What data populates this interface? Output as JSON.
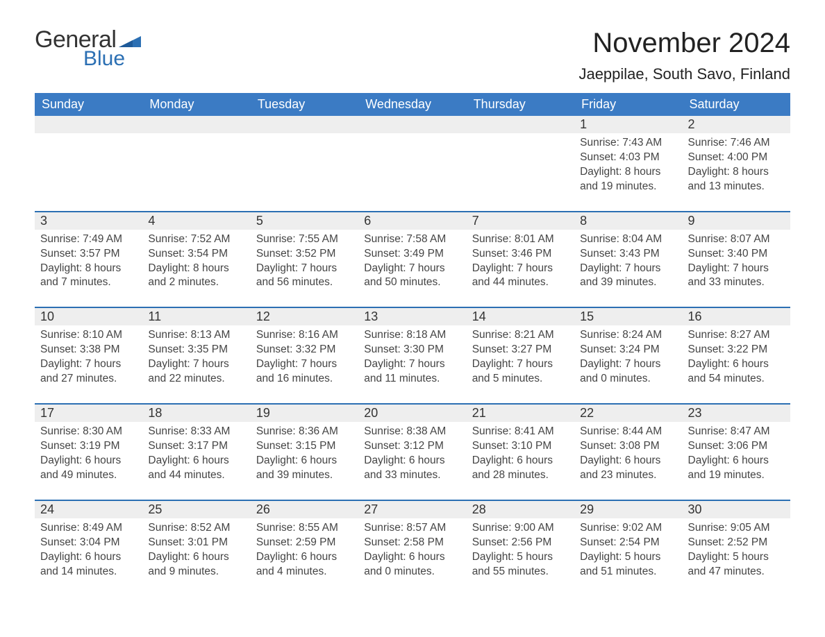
{
  "brand": {
    "word1": "General",
    "word2": "Blue",
    "flag_color": "#2b6fb3"
  },
  "header": {
    "title": "November 2024",
    "location": "Jaeppilae, South Savo, Finland"
  },
  "colors": {
    "header_bg": "#3b7bc4",
    "header_text": "#ffffff",
    "row_border": "#2b6fb3",
    "daynum_bg": "#eeeeee",
    "page_bg": "#ffffff",
    "text": "#333333"
  },
  "days_of_week": [
    "Sunday",
    "Monday",
    "Tuesday",
    "Wednesday",
    "Thursday",
    "Friday",
    "Saturday"
  ],
  "weeks": [
    [
      null,
      null,
      null,
      null,
      null,
      {
        "n": "1",
        "sunrise": "Sunrise: 7:43 AM",
        "sunset": "Sunset: 4:03 PM",
        "dl1": "Daylight: 8 hours",
        "dl2": "and 19 minutes."
      },
      {
        "n": "2",
        "sunrise": "Sunrise: 7:46 AM",
        "sunset": "Sunset: 4:00 PM",
        "dl1": "Daylight: 8 hours",
        "dl2": "and 13 minutes."
      }
    ],
    [
      {
        "n": "3",
        "sunrise": "Sunrise: 7:49 AM",
        "sunset": "Sunset: 3:57 PM",
        "dl1": "Daylight: 8 hours",
        "dl2": "and 7 minutes."
      },
      {
        "n": "4",
        "sunrise": "Sunrise: 7:52 AM",
        "sunset": "Sunset: 3:54 PM",
        "dl1": "Daylight: 8 hours",
        "dl2": "and 2 minutes."
      },
      {
        "n": "5",
        "sunrise": "Sunrise: 7:55 AM",
        "sunset": "Sunset: 3:52 PM",
        "dl1": "Daylight: 7 hours",
        "dl2": "and 56 minutes."
      },
      {
        "n": "6",
        "sunrise": "Sunrise: 7:58 AM",
        "sunset": "Sunset: 3:49 PM",
        "dl1": "Daylight: 7 hours",
        "dl2": "and 50 minutes."
      },
      {
        "n": "7",
        "sunrise": "Sunrise: 8:01 AM",
        "sunset": "Sunset: 3:46 PM",
        "dl1": "Daylight: 7 hours",
        "dl2": "and 44 minutes."
      },
      {
        "n": "8",
        "sunrise": "Sunrise: 8:04 AM",
        "sunset": "Sunset: 3:43 PM",
        "dl1": "Daylight: 7 hours",
        "dl2": "and 39 minutes."
      },
      {
        "n": "9",
        "sunrise": "Sunrise: 8:07 AM",
        "sunset": "Sunset: 3:40 PM",
        "dl1": "Daylight: 7 hours",
        "dl2": "and 33 minutes."
      }
    ],
    [
      {
        "n": "10",
        "sunrise": "Sunrise: 8:10 AM",
        "sunset": "Sunset: 3:38 PM",
        "dl1": "Daylight: 7 hours",
        "dl2": "and 27 minutes."
      },
      {
        "n": "11",
        "sunrise": "Sunrise: 8:13 AM",
        "sunset": "Sunset: 3:35 PM",
        "dl1": "Daylight: 7 hours",
        "dl2": "and 22 minutes."
      },
      {
        "n": "12",
        "sunrise": "Sunrise: 8:16 AM",
        "sunset": "Sunset: 3:32 PM",
        "dl1": "Daylight: 7 hours",
        "dl2": "and 16 minutes."
      },
      {
        "n": "13",
        "sunrise": "Sunrise: 8:18 AM",
        "sunset": "Sunset: 3:30 PM",
        "dl1": "Daylight: 7 hours",
        "dl2": "and 11 minutes."
      },
      {
        "n": "14",
        "sunrise": "Sunrise: 8:21 AM",
        "sunset": "Sunset: 3:27 PM",
        "dl1": "Daylight: 7 hours",
        "dl2": "and 5 minutes."
      },
      {
        "n": "15",
        "sunrise": "Sunrise: 8:24 AM",
        "sunset": "Sunset: 3:24 PM",
        "dl1": "Daylight: 7 hours",
        "dl2": "and 0 minutes."
      },
      {
        "n": "16",
        "sunrise": "Sunrise: 8:27 AM",
        "sunset": "Sunset: 3:22 PM",
        "dl1": "Daylight: 6 hours",
        "dl2": "and 54 minutes."
      }
    ],
    [
      {
        "n": "17",
        "sunrise": "Sunrise: 8:30 AM",
        "sunset": "Sunset: 3:19 PM",
        "dl1": "Daylight: 6 hours",
        "dl2": "and 49 minutes."
      },
      {
        "n": "18",
        "sunrise": "Sunrise: 8:33 AM",
        "sunset": "Sunset: 3:17 PM",
        "dl1": "Daylight: 6 hours",
        "dl2": "and 44 minutes."
      },
      {
        "n": "19",
        "sunrise": "Sunrise: 8:36 AM",
        "sunset": "Sunset: 3:15 PM",
        "dl1": "Daylight: 6 hours",
        "dl2": "and 39 minutes."
      },
      {
        "n": "20",
        "sunrise": "Sunrise: 8:38 AM",
        "sunset": "Sunset: 3:12 PM",
        "dl1": "Daylight: 6 hours",
        "dl2": "and 33 minutes."
      },
      {
        "n": "21",
        "sunrise": "Sunrise: 8:41 AM",
        "sunset": "Sunset: 3:10 PM",
        "dl1": "Daylight: 6 hours",
        "dl2": "and 28 minutes."
      },
      {
        "n": "22",
        "sunrise": "Sunrise: 8:44 AM",
        "sunset": "Sunset: 3:08 PM",
        "dl1": "Daylight: 6 hours",
        "dl2": "and 23 minutes."
      },
      {
        "n": "23",
        "sunrise": "Sunrise: 8:47 AM",
        "sunset": "Sunset: 3:06 PM",
        "dl1": "Daylight: 6 hours",
        "dl2": "and 19 minutes."
      }
    ],
    [
      {
        "n": "24",
        "sunrise": "Sunrise: 8:49 AM",
        "sunset": "Sunset: 3:04 PM",
        "dl1": "Daylight: 6 hours",
        "dl2": "and 14 minutes."
      },
      {
        "n": "25",
        "sunrise": "Sunrise: 8:52 AM",
        "sunset": "Sunset: 3:01 PM",
        "dl1": "Daylight: 6 hours",
        "dl2": "and 9 minutes."
      },
      {
        "n": "26",
        "sunrise": "Sunrise: 8:55 AM",
        "sunset": "Sunset: 2:59 PM",
        "dl1": "Daylight: 6 hours",
        "dl2": "and 4 minutes."
      },
      {
        "n": "27",
        "sunrise": "Sunrise: 8:57 AM",
        "sunset": "Sunset: 2:58 PM",
        "dl1": "Daylight: 6 hours",
        "dl2": "and 0 minutes."
      },
      {
        "n": "28",
        "sunrise": "Sunrise: 9:00 AM",
        "sunset": "Sunset: 2:56 PM",
        "dl1": "Daylight: 5 hours",
        "dl2": "and 55 minutes."
      },
      {
        "n": "29",
        "sunrise": "Sunrise: 9:02 AM",
        "sunset": "Sunset: 2:54 PM",
        "dl1": "Daylight: 5 hours",
        "dl2": "and 51 minutes."
      },
      {
        "n": "30",
        "sunrise": "Sunrise: 9:05 AM",
        "sunset": "Sunset: 2:52 PM",
        "dl1": "Daylight: 5 hours",
        "dl2": "and 47 minutes."
      }
    ]
  ]
}
